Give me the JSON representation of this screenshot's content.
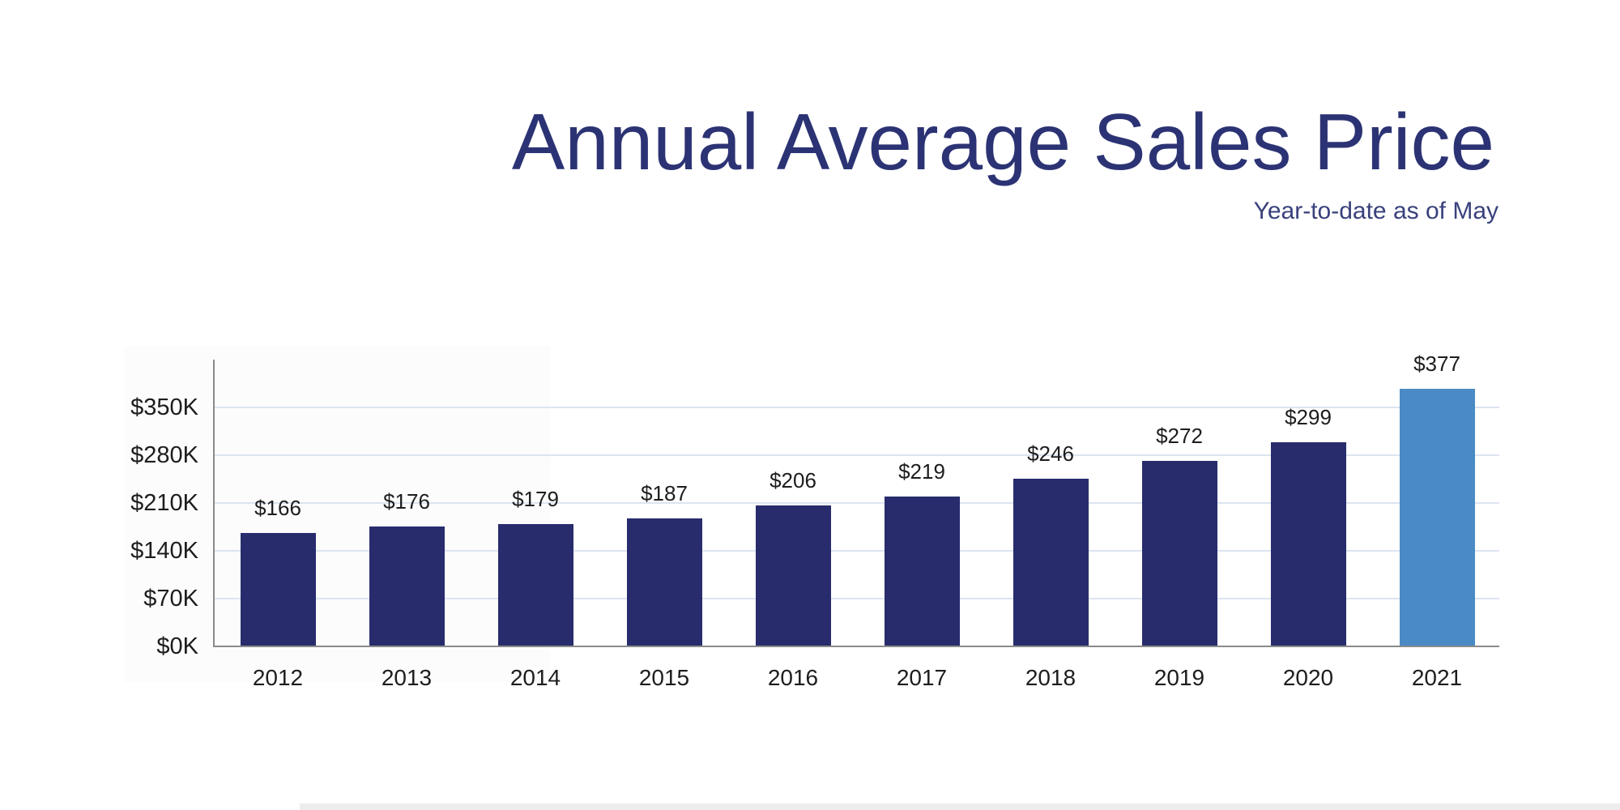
{
  "header": {
    "title": "Annual Average Sales Price",
    "subtitle": "Year-to-date as of May"
  },
  "colors": {
    "title_text": "#2c3374",
    "subtitle_text": "#39417c",
    "bar_default": "#282c6d",
    "bar_highlight": "#4a8bc5",
    "gridline": "#dce4f0",
    "axis_line": "#8a8a8a",
    "tick_text": "#1d1d1d",
    "value_label_text": "#1d1d1d"
  },
  "chart_data": {
    "type": "bar",
    "title": "Annual Average Sales Price",
    "subtitle": "Year-to-date as of May",
    "categories": [
      "2012",
      "2013",
      "2014",
      "2015",
      "2016",
      "2017",
      "2018",
      "2019",
      "2020",
      "2021"
    ],
    "values": [
      166,
      176,
      179,
      187,
      206,
      219,
      246,
      272,
      299,
      377
    ],
    "value_labels": [
      "$166",
      "$176",
      "$179",
      "$187",
      "$206",
      "$219",
      "$246",
      "$272",
      "$299",
      "$377"
    ],
    "unit": "USD thousands",
    "xlabel": "",
    "ylabel": "",
    "ytick_labels": [
      "$0K",
      "$70K",
      "$140K",
      "$210K",
      "$280K",
      "$350K"
    ],
    "ytick_values": [
      0,
      70,
      140,
      210,
      280,
      350
    ],
    "ylim": [
      0,
      420
    ],
    "grid": true,
    "legend": false,
    "highlighted_category": "2021",
    "bar_color": "#282c6d",
    "highlight_color": "#4a8bc5"
  }
}
